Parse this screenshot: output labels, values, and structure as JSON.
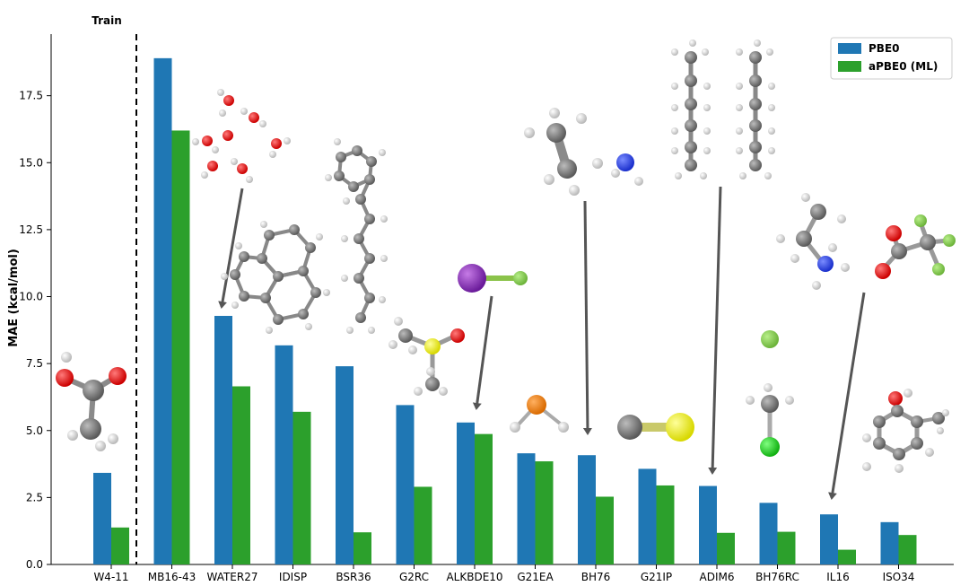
{
  "chart_data": {
    "type": "bar",
    "ylabel": "MAE (kcal/mol)",
    "xlabel": "",
    "ylim": [
      0,
      19.8
    ],
    "yticks": [
      "0.0",
      "2.5",
      "5.0",
      "7.5",
      "10.0",
      "12.5",
      "15.0",
      "17.5"
    ],
    "categories": [
      "W4-11",
      "MB16-43",
      "WATER27",
      "IDISP",
      "BSR36",
      "G2RC",
      "ALKBDE10",
      "G21EA",
      "BH76",
      "G21IP",
      "ADIM6",
      "BH76RC",
      "IL16",
      "ISO34"
    ],
    "series": [
      {
        "name": "PBE0",
        "color": "#1f77b4",
        "values": [
          3.42,
          18.9,
          9.28,
          8.18,
          7.4,
          5.95,
          5.3,
          4.15,
          4.08,
          3.57,
          2.93,
          2.3,
          1.87,
          1.58
        ]
      },
      {
        "name": "aPBE0 (ML)",
        "color": "#2ca02c",
        "values": [
          1.38,
          16.2,
          6.65,
          5.7,
          1.2,
          2.9,
          4.87,
          3.85,
          2.53,
          2.95,
          1.18,
          1.22,
          0.55,
          1.1
        ]
      }
    ],
    "annotation": "Train",
    "split_after_category": "W4-11",
    "legend": "top-right",
    "grid": false
  },
  "molecule_icons": [
    "acetic-acid-molecule",
    "water-cluster-molecule",
    "polycyclic-hydrocarbon-molecule",
    "polyene-chain-molecule",
    "dimethyl-sulfoxide-molecule",
    "iodine-fluoride-molecule",
    "phosphine-molecule",
    "ethylene-molecule",
    "ammonia-hydrogen-complex",
    "carbon-sulfide-molecule",
    "alkane-dimer-molecule",
    "fluoromethane-complex",
    "ethylammonium-molecule",
    "trifluoroacetate-molecule",
    "cresol-molecule"
  ]
}
